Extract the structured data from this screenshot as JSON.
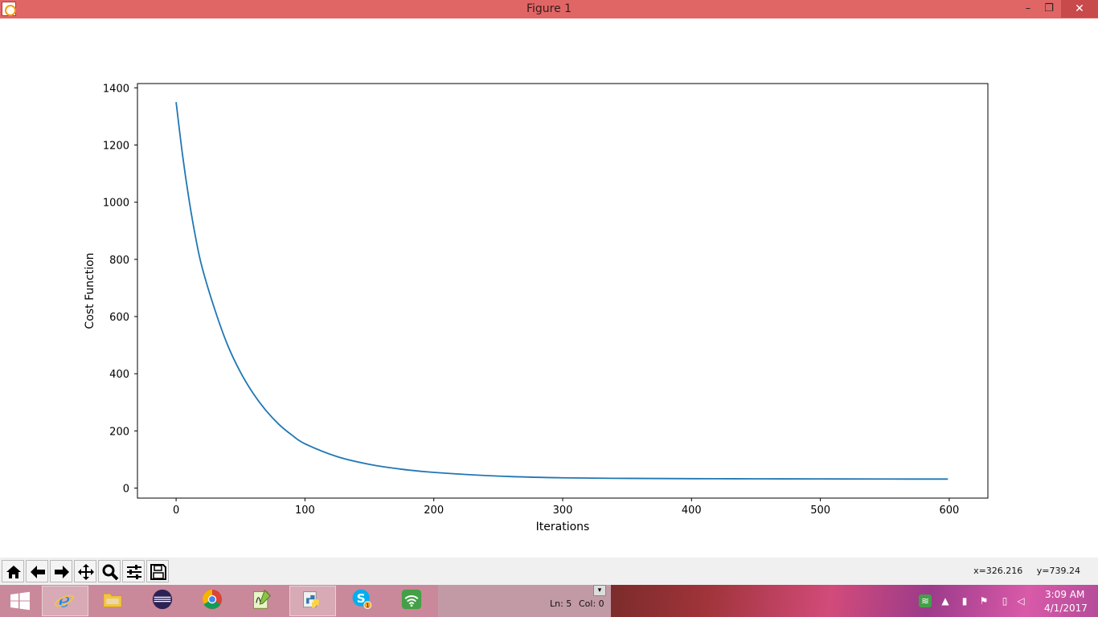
{
  "window": {
    "title": "Figure 1",
    "minimize_glyph": "–",
    "maximize_glyph": "❐",
    "close_glyph": "✕"
  },
  "chart_data": {
    "type": "line",
    "title": "",
    "xlabel": "Iterations",
    "ylabel": "Cost Function",
    "xlim": [
      -30,
      630
    ],
    "ylim": [
      -35,
      1415
    ],
    "xticks": [
      0,
      100,
      200,
      300,
      400,
      500,
      600
    ],
    "yticks": [
      0,
      200,
      400,
      600,
      800,
      1000,
      1200,
      1400
    ],
    "grid": false,
    "color": "#1f77b4",
    "series": [
      {
        "x": [
          0,
          5,
          10,
          15,
          20,
          30,
          40,
          50,
          60,
          70,
          80,
          90,
          100,
          125,
          150,
          175,
          200,
          250,
          300,
          350,
          400,
          450,
          500,
          550,
          599
        ],
        "values": [
          1350,
          1165,
          1010,
          880,
          775,
          625,
          500,
          405,
          330,
          270,
          222,
          185,
          155,
          110,
          83,
          66,
          55,
          42,
          36,
          34,
          33,
          32.5,
          32,
          31.7,
          31.5
        ]
      }
    ]
  },
  "toolbar": {
    "tools": [
      {
        "name": "home-button",
        "icon": "home-icon"
      },
      {
        "name": "back-button",
        "icon": "arrow-left-icon"
      },
      {
        "name": "forward-button",
        "icon": "arrow-right-icon"
      },
      {
        "name": "pan-button",
        "icon": "move-icon"
      },
      {
        "name": "zoom-button",
        "icon": "magnifier-icon"
      },
      {
        "name": "subplots-button",
        "icon": "sliders-icon"
      },
      {
        "name": "save-button",
        "icon": "floppy-icon"
      }
    ],
    "coord_x": "x=326.216",
    "coord_y": "y=739.24"
  },
  "taskbar": {
    "apps": [
      {
        "name": "internet-explorer",
        "icon": "ie-icon",
        "color": "#1e88e5"
      },
      {
        "name": "file-explorer",
        "icon": "folder-icon",
        "color": "#f6c342"
      },
      {
        "name": "eclipse",
        "icon": "eclipse-icon",
        "color": "#2c2255"
      },
      {
        "name": "chrome",
        "icon": "chrome-icon",
        "color": "#db4437"
      },
      {
        "name": "notepad-plus-plus",
        "icon": "notepad-icon",
        "color": "#8bc34a"
      },
      {
        "name": "python",
        "icon": "python-icon",
        "color": "#3776ab"
      },
      {
        "name": "skype",
        "icon": "skype-icon",
        "color": "#00aff0"
      },
      {
        "name": "wifi-hotspot",
        "icon": "wifi-icon",
        "color": "#43a047"
      }
    ],
    "notepad_ln": "Ln: 5",
    "notepad_col": "Col: 0",
    "skype_badge": "1",
    "clock_time": "3:09 AM",
    "clock_date": "4/1/2017"
  }
}
